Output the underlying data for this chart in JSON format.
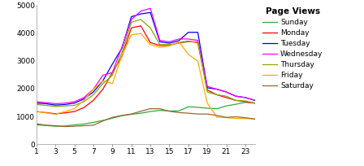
{
  "hours": [
    1,
    2,
    3,
    4,
    5,
    6,
    7,
    8,
    9,
    10,
    11,
    12,
    13,
    14,
    15,
    16,
    17,
    18,
    19,
    20,
    21,
    22,
    23,
    24
  ],
  "sunday": [
    700,
    680,
    650,
    660,
    700,
    730,
    790,
    860,
    940,
    1030,
    1080,
    1120,
    1180,
    1220,
    1200,
    1200,
    1350,
    1330,
    1300,
    1280,
    1380,
    1440,
    1510,
    1480
  ],
  "monday": [
    1180,
    1140,
    1100,
    1130,
    1180,
    1320,
    1580,
    1980,
    2580,
    3150,
    4180,
    4250,
    3650,
    3550,
    3550,
    3650,
    3700,
    3650,
    1950,
    1780,
    1680,
    1580,
    1530,
    1480
  ],
  "tuesday": [
    1480,
    1460,
    1410,
    1430,
    1480,
    1630,
    1880,
    2280,
    2880,
    3450,
    4580,
    4680,
    4730,
    3680,
    3630,
    3720,
    4020,
    4020,
    2030,
    1980,
    1880,
    1730,
    1680,
    1580
  ],
  "wednesday": [
    1530,
    1500,
    1460,
    1480,
    1530,
    1680,
    1980,
    2480,
    2580,
    3480,
    4480,
    4780,
    4880,
    3730,
    3680,
    3780,
    3780,
    3730,
    2080,
    1980,
    1880,
    1730,
    1680,
    1580
  ],
  "thursday": [
    1430,
    1400,
    1360,
    1380,
    1400,
    1530,
    1780,
    2180,
    2480,
    3280,
    4380,
    4480,
    4180,
    3580,
    3580,
    3630,
    3680,
    3680,
    1880,
    1780,
    1730,
    1580,
    1560,
    1480
  ],
  "friday": [
    1180,
    1130,
    1080,
    1180,
    1280,
    1580,
    1980,
    2280,
    2180,
    3180,
    3930,
    3980,
    3580,
    3480,
    3530,
    3680,
    3230,
    2980,
    1480,
    980,
    960,
    930,
    930,
    910
  ],
  "saturday": [
    740,
    690,
    670,
    640,
    650,
    670,
    690,
    840,
    970,
    1040,
    1090,
    1190,
    1280,
    1280,
    1190,
    1140,
    1120,
    1090,
    1090,
    1040,
    970,
    990,
    960,
    910
  ],
  "colors": {
    "sunday": "#33aa33",
    "monday": "#ff0000",
    "tuesday": "#0000ff",
    "wednesday": "#ff00ff",
    "thursday": "#88aa00",
    "friday": "#ffaa00",
    "saturday": "#996633"
  },
  "title": "Page Views",
  "xlim": [
    1,
    24
  ],
  "ylim": [
    0,
    5000
  ],
  "xticks": [
    1,
    3,
    5,
    7,
    9,
    11,
    13,
    15,
    17,
    19,
    21,
    23
  ],
  "yticks": [
    0,
    1000,
    2000,
    3000,
    4000,
    5000
  ],
  "figsize": [
    4.48,
    2.04
  ],
  "dpi": 100
}
